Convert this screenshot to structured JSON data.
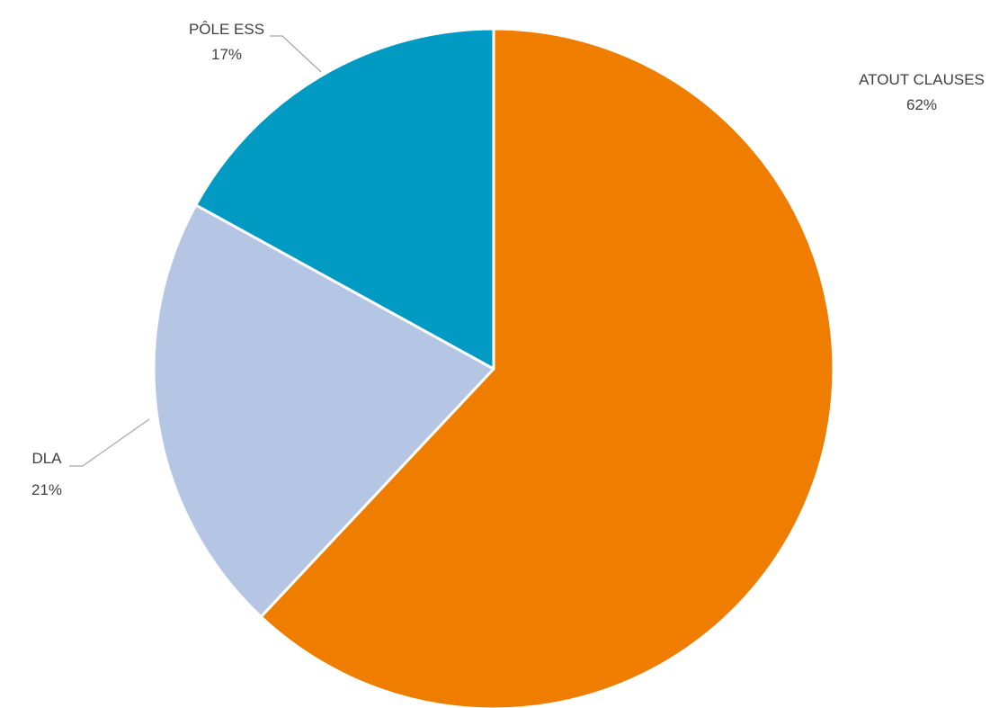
{
  "chart_data": {
    "type": "pie",
    "title": "",
    "slices": [
      {
        "label": "ATOUT CLAUSES",
        "value": 62,
        "value_label": "62%",
        "color": "#ef7d00"
      },
      {
        "label": "DLA",
        "value": 21,
        "value_label": "21%",
        "color": "#b4c6e4"
      },
      {
        "label": "PÔLE ESS",
        "value": 17,
        "value_label": "17%",
        "color": "#009ac3"
      }
    ],
    "start": "12 o'clock",
    "direction": "clockwise",
    "legend": "none",
    "data_labels": "outside with leader lines"
  }
}
